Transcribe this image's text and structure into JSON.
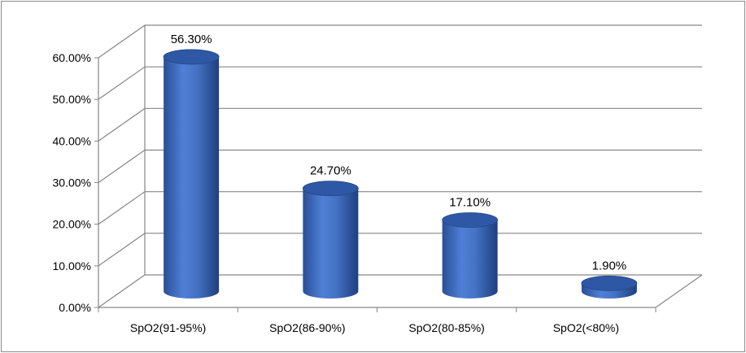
{
  "chart_data": {
    "type": "bar",
    "style": "3d-cylinder",
    "categories": [
      "SpO2(91-95%)",
      "SpO2(86-90%)",
      "SpO2(80-85%)",
      "SpO2(<80%)"
    ],
    "values": [
      56.3,
      24.7,
      17.1,
      1.9
    ],
    "data_labels": [
      "56.30%",
      "24.70%",
      "17.10%",
      "1.90%"
    ],
    "ylim": [
      0,
      60
    ],
    "yticks": [
      0,
      10,
      20,
      30,
      40,
      50,
      60
    ],
    "ytick_labels": [
      "0.00%",
      "10.00%",
      "20.00%",
      "30.00%",
      "40.00%",
      "50.00%",
      "60.00%"
    ],
    "grid": true,
    "legend": "none",
    "bar_color": "#4472c4",
    "bar_top_color": "#2e58a6",
    "grid_color": "#868686"
  }
}
